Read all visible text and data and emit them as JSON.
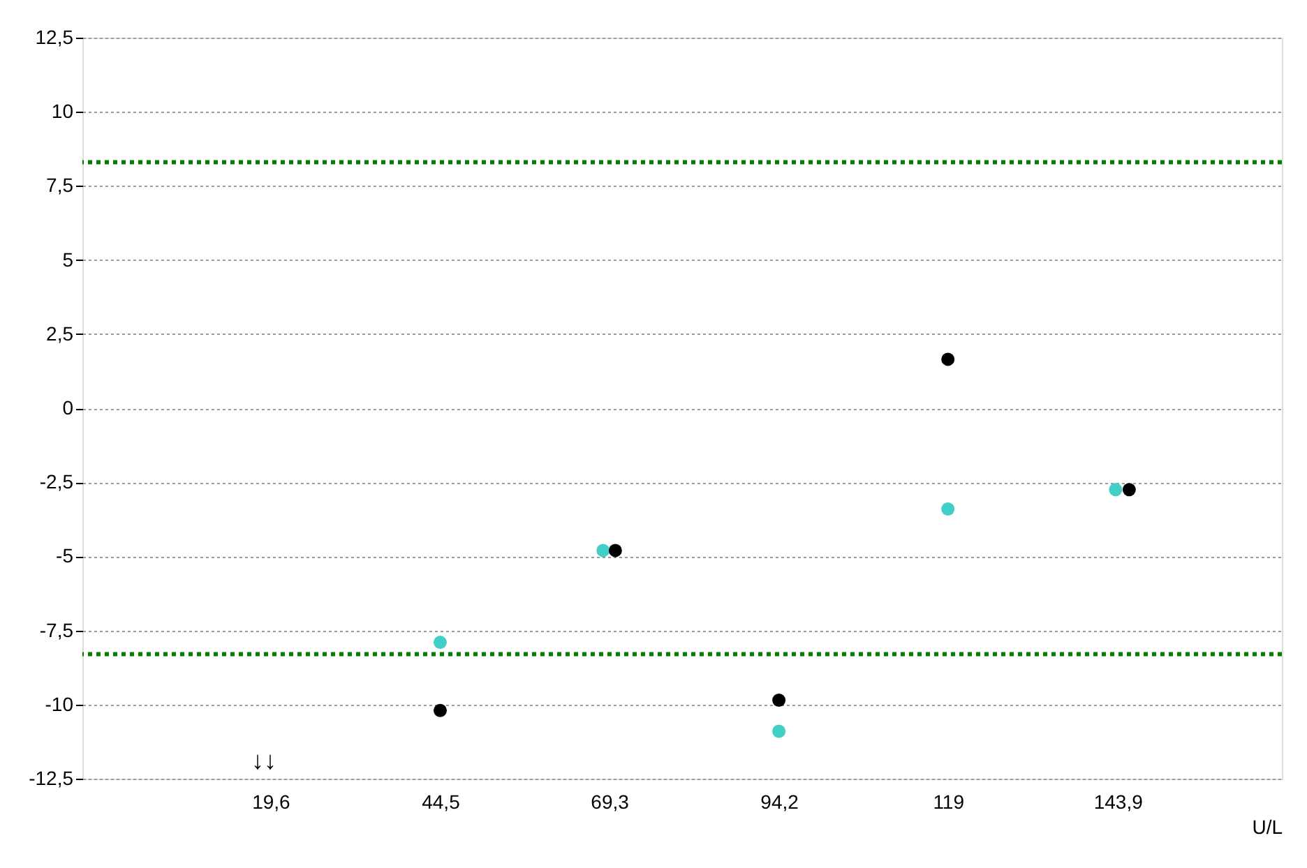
{
  "chart_data": {
    "type": "scatter",
    "xlabel": "U/L",
    "marker": "circle",
    "grid": "y",
    "legend": false,
    "xlim": [
      -8,
      168
    ],
    "ylim": [
      -12.5,
      12.5
    ],
    "xticks": [
      {
        "value": 19.6,
        "label": "19,6"
      },
      {
        "value": 44.5,
        "label": "44,5"
      },
      {
        "value": 69.3,
        "label": "69,3"
      },
      {
        "value": 94.2,
        "label": "94,2"
      },
      119,
      {
        "value": 143.9,
        "label": "143,9"
      }
    ],
    "yticks": [
      {
        "value": -12.5,
        "label": "-12,5"
      },
      -10,
      {
        "value": -7.5,
        "label": "-7,5"
      },
      -5,
      {
        "value": -2.5,
        "label": "-2,5"
      },
      0,
      {
        "value": 2.5,
        "label": "2,5"
      },
      5,
      {
        "value": 7.5,
        "label": "7,5"
      },
      10,
      {
        "value": 12.5,
        "label": "12,5"
      }
    ],
    "series": [
      {
        "color": "#40d0c8",
        "x": [
          44.5,
          68.4,
          94.2,
          119,
          143.6
        ],
        "values": [
          -7.9,
          -4.8,
          -10.9,
          -3.4,
          -2.75
        ]
      },
      {
        "color": "#000000",
        "x": [
          44.5,
          70.2,
          94.2,
          119,
          145.6
        ],
        "values": [
          -10.2,
          -4.8,
          -9.85,
          1.65,
          -2.75
        ]
      }
    ],
    "ref_lines": [
      {
        "axis": "y",
        "value": 8.3,
        "color": "#008000",
        "line_style": "dotted"
      },
      {
        "axis": "y",
        "value": -8.3,
        "color": "#008000",
        "line_style": "dotted"
      }
    ],
    "annotations": [
      "↓↓"
    ]
  }
}
